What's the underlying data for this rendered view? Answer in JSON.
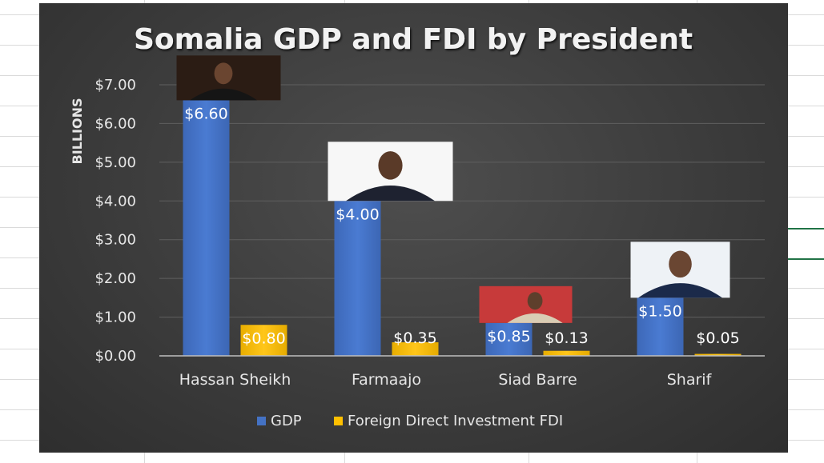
{
  "chart_data": {
    "type": "bar",
    "title": "Somalia GDP and FDI by President",
    "ylabel": "BILLIONS",
    "xlabel": "",
    "categories": [
      "Hassan Sheikh",
      "Farmaajo",
      "Siad Barre",
      "Sharif"
    ],
    "series": [
      {
        "name": "GDP",
        "values": [
          6.6,
          4.0,
          0.85,
          1.5
        ],
        "labels": [
          "$6.60",
          "$4.00",
          "$0.85",
          "$1.50"
        ],
        "color": "#4472c4"
      },
      {
        "name": "Foreign Direct Investment FDI",
        "values": [
          0.8,
          0.35,
          0.13,
          0.05
        ],
        "labels": [
          "$0.80",
          "$0.35",
          "$0.13",
          "$0.05"
        ],
        "color": "#ffc000"
      }
    ],
    "yticks": [
      "$0.00",
      "$1.00",
      "$2.00",
      "$3.00",
      "$4.00",
      "$5.00",
      "$6.00",
      "$7.00"
    ],
    "ylim": [
      0,
      7
    ],
    "grid": true,
    "legend_position": "bottom",
    "photos": [
      "portrait-hassan-sheikh",
      "portrait-farmaajo",
      "portrait-siad-barre",
      "portrait-sharif"
    ]
  }
}
